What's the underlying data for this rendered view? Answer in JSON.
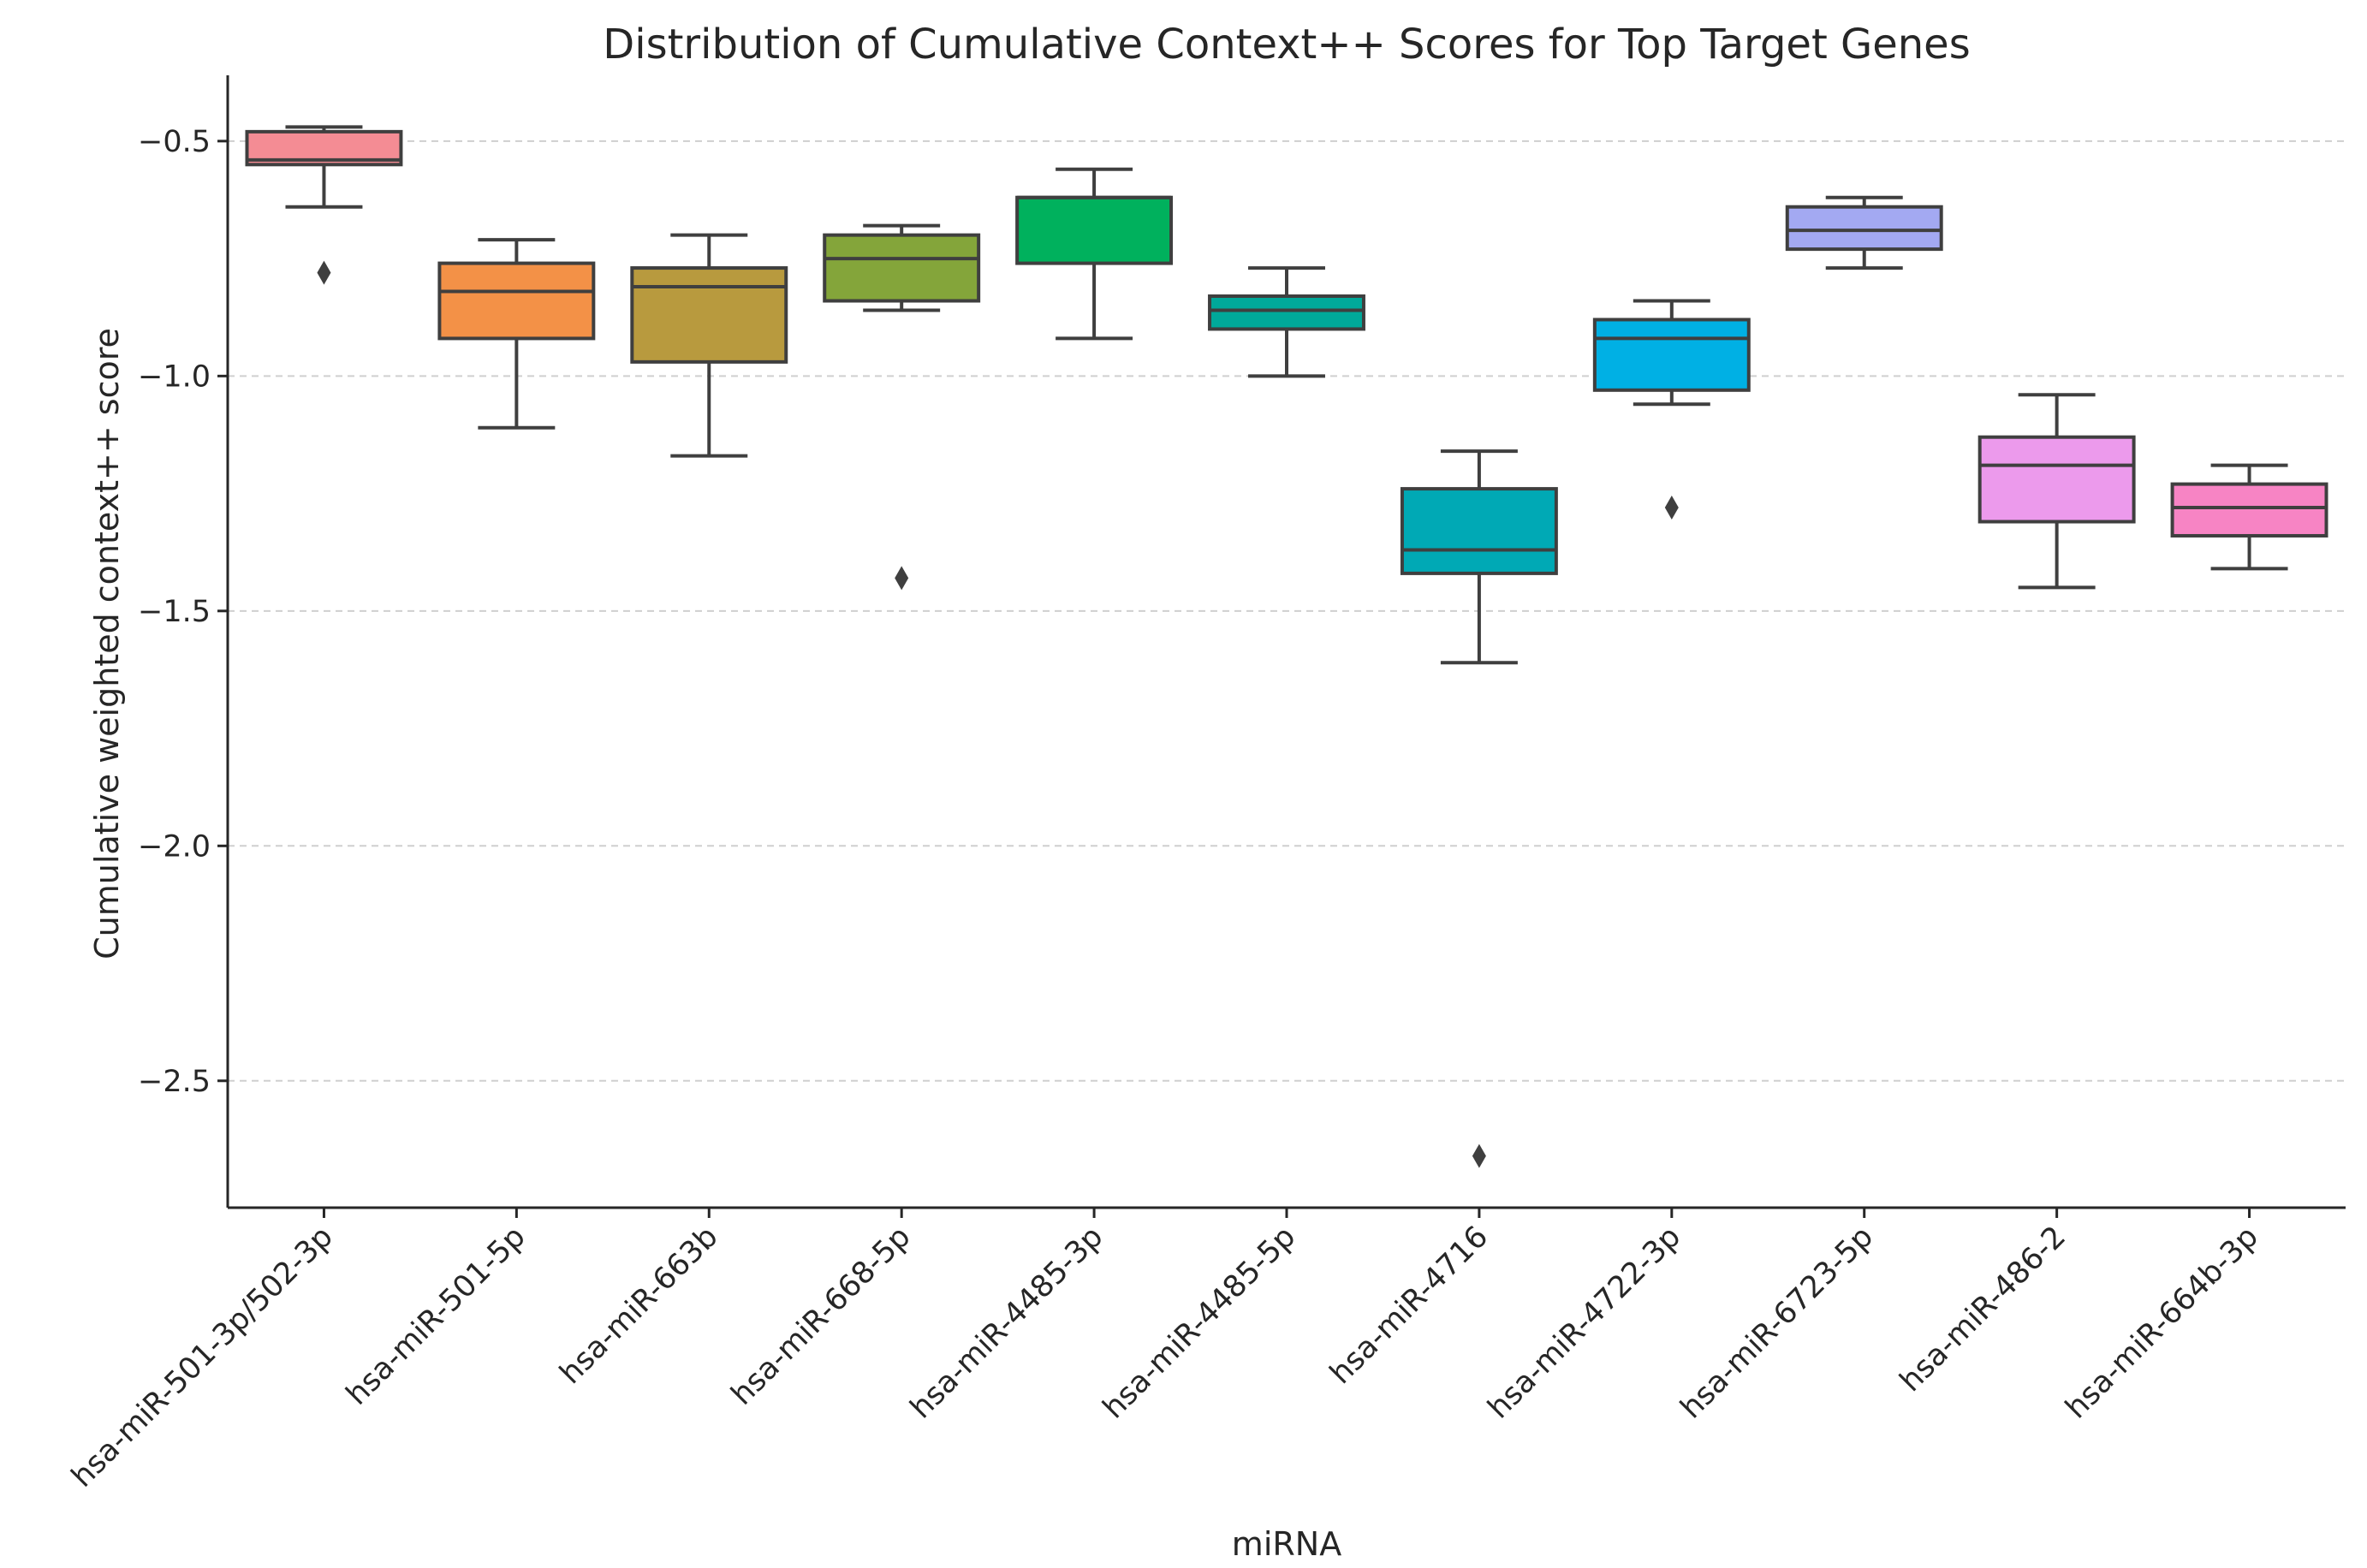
{
  "chart_data": {
    "type": "box",
    "title": "Distribution of Cumulative Context++ Scores for Top Target Genes",
    "xlabel": "miRNA",
    "ylabel": "Cumulative weighted context++ score",
    "ylim": [
      -2.77,
      -0.36
    ],
    "yticks": [
      -0.5,
      -1.0,
      -1.5,
      -2.0,
      -2.5
    ],
    "ytick_labels": [
      "−0.5",
      "−1.0",
      "−1.5",
      "−2.0",
      "−2.5"
    ],
    "grid": "horizontal-dashed",
    "series": [
      {
        "name": "hsa-miR-501-3p/502-3p",
        "color": "#f48c94",
        "whisker_low": -0.64,
        "q1": -0.55,
        "median": -0.54,
        "q3": -0.48,
        "whisker_high": -0.47,
        "outliers": [
          -0.78
        ]
      },
      {
        "name": "hsa-miR-501-5p",
        "color": "#f39147",
        "whisker_low": -1.11,
        "q1": -0.92,
        "median": -0.82,
        "q3": -0.76,
        "whisker_high": -0.71,
        "outliers": []
      },
      {
        "name": "hsa-miR-663b",
        "color": "#b89a3e",
        "whisker_low": -1.17,
        "q1": -0.97,
        "median": -0.81,
        "q3": -0.77,
        "whisker_high": -0.7,
        "outliers": []
      },
      {
        "name": "hsa-miR-668-5p",
        "color": "#84a53a",
        "whisker_low": -0.86,
        "q1": -0.84,
        "median": -0.75,
        "q3": -0.7,
        "whisker_high": -0.68,
        "outliers": [
          -1.43
        ]
      },
      {
        "name": "hsa-miR-4485-3p",
        "color": "#00b15d",
        "whisker_low": -0.92,
        "q1": -0.76,
        "median": -0.62,
        "q3": -0.62,
        "whisker_high": -0.56,
        "outliers": []
      },
      {
        "name": "hsa-miR-4485-5p",
        "color": "#00a99a",
        "whisker_low": -1.0,
        "q1": -0.9,
        "median": -0.86,
        "q3": -0.83,
        "whisker_high": -0.77,
        "outliers": []
      },
      {
        "name": "hsa-miR-4716",
        "color": "#00a9b5",
        "whisker_low": -1.61,
        "q1": -1.42,
        "median": -1.37,
        "q3": -1.24,
        "whisker_high": -1.16,
        "outliers": [
          -2.66
        ]
      },
      {
        "name": "hsa-miR-4722-3p",
        "color": "#00b0e4",
        "whisker_low": -1.06,
        "q1": -1.03,
        "median": -0.92,
        "q3": -0.88,
        "whisker_high": -0.84,
        "outliers": [
          -1.28
        ]
      },
      {
        "name": "hsa-miR-6723-5p",
        "color": "#a3a9f2",
        "whisker_low": -0.77,
        "q1": -0.73,
        "median": -0.69,
        "q3": -0.64,
        "whisker_high": -0.62,
        "outliers": []
      },
      {
        "name": "hsa-miR-486-2",
        "color": "#ec9aec",
        "whisker_low": -1.45,
        "q1": -1.31,
        "median": -1.19,
        "q3": -1.13,
        "whisker_high": -1.04,
        "outliers": []
      },
      {
        "name": "hsa-miR-664b-3p",
        "color": "#f784c4",
        "whisker_low": -1.41,
        "q1": -1.34,
        "median": -1.28,
        "q3": -1.23,
        "whisker_high": -1.19,
        "outliers": []
      }
    ]
  }
}
